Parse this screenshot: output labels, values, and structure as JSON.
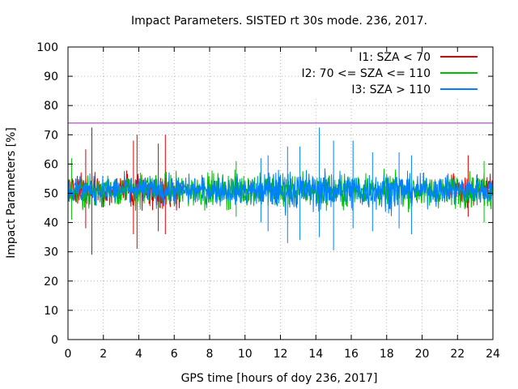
{
  "chart_data": {
    "type": "line",
    "title": "Impact Parameters. SISTED rt 30s mode. 236, 2017.",
    "xlabel": "GPS time [hours of doy 236, 2017]",
    "ylabel": "Impact Parameters [%]",
    "xlim": [
      0,
      24
    ],
    "ylim": [
      0,
      100
    ],
    "x_ticks": [
      0,
      2,
      4,
      6,
      8,
      10,
      12,
      14,
      16,
      18,
      20,
      22,
      24
    ],
    "y_ticks": [
      0,
      10,
      20,
      30,
      40,
      50,
      60,
      70,
      80,
      90,
      100
    ],
    "grid": true,
    "legend_position": "top-right",
    "reference_line": {
      "y": 74,
      "color": "#a020c0"
    },
    "series": [
      {
        "name": "I1: SZA < 70",
        "color": "#e00000",
        "segments": [
          [
            0,
            6.5
          ],
          [
            21.5,
            24
          ]
        ],
        "mean": 51,
        "spread": 5,
        "extremes": [
          {
            "x": 1.35,
            "min": 29,
            "max": 72.5
          },
          {
            "x": 1.0,
            "min": 38,
            "max": 65
          },
          {
            "x": 3.9,
            "min": 31,
            "max": 70
          },
          {
            "x": 3.7,
            "min": 36,
            "max": 68
          },
          {
            "x": 5.5,
            "min": 36,
            "max": 70
          },
          {
            "x": 5.1,
            "min": 37,
            "max": 67
          },
          {
            "x": 22.6,
            "min": 42,
            "max": 63
          }
        ]
      },
      {
        "name": "I2: 70 <= SZA <= 110",
        "color": "#00c000",
        "segments": [
          [
            0,
            24
          ]
        ],
        "mean": 51,
        "spread": 5,
        "extremes": [
          {
            "x": 0.2,
            "min": 41,
            "max": 62
          },
          {
            "x": 9.5,
            "min": 42,
            "max": 61
          },
          {
            "x": 23.5,
            "min": 40,
            "max": 61
          }
        ]
      },
      {
        "name": "I3: SZA > 110",
        "color": "#0080ff",
        "segments": [
          [
            0,
            24
          ]
        ],
        "mean": 51,
        "spread": 4.5,
        "extremes": [
          {
            "x": 14.2,
            "min": 35,
            "max": 72.5
          },
          {
            "x": 15.0,
            "min": 30.5,
            "max": 68
          },
          {
            "x": 13.1,
            "min": 34,
            "max": 66
          },
          {
            "x": 12.4,
            "min": 33,
            "max": 66
          },
          {
            "x": 16.1,
            "min": 38,
            "max": 68
          },
          {
            "x": 17.2,
            "min": 37,
            "max": 64
          },
          {
            "x": 19.4,
            "min": 36,
            "max": 63
          },
          {
            "x": 18.7,
            "min": 38,
            "max": 64
          },
          {
            "x": 11.3,
            "min": 37,
            "max": 63
          },
          {
            "x": 10.9,
            "min": 40,
            "max": 62
          }
        ]
      }
    ]
  }
}
